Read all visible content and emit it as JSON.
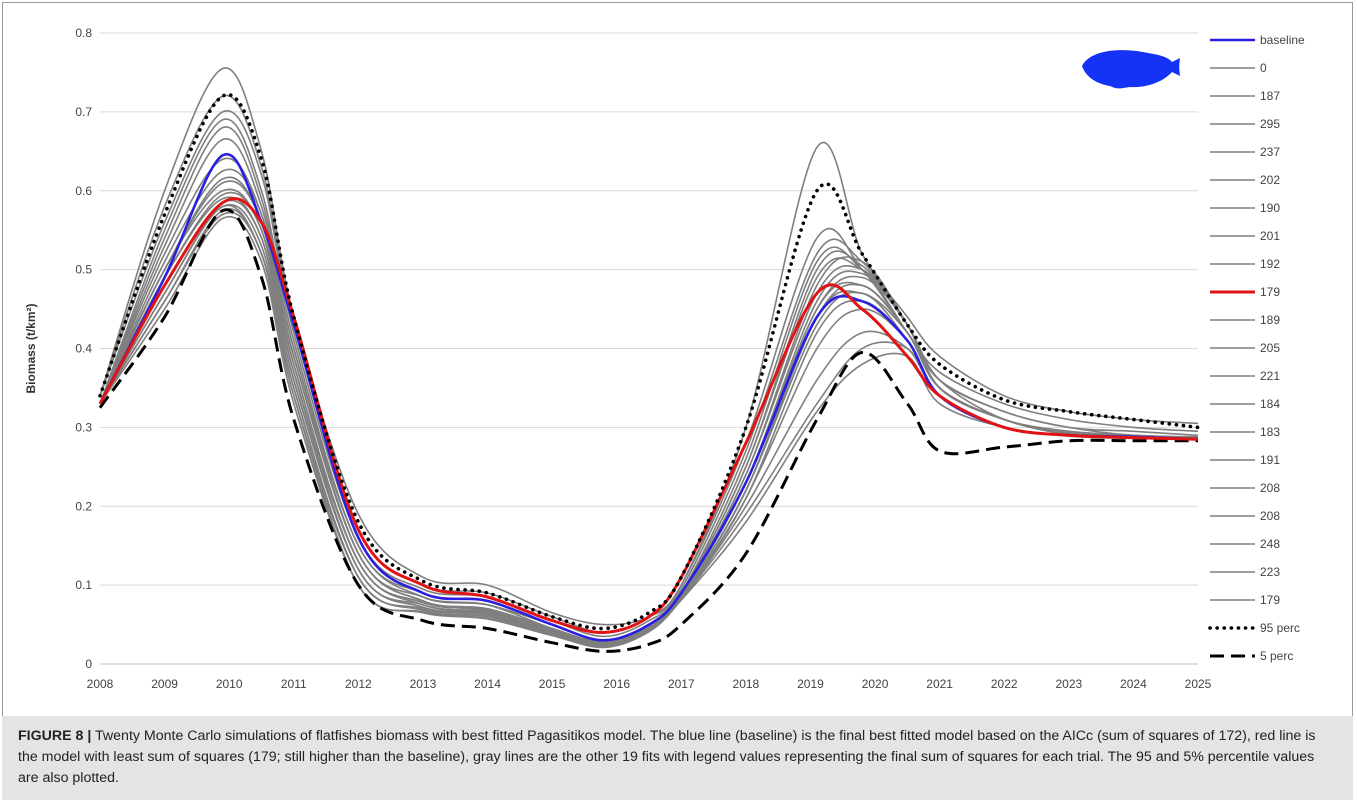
{
  "caption": {
    "label": "FIGURE 8 |",
    "text": " Twenty Monte Carlo simulations of flatfishes biomass with best fitted Pagasitikos model. The blue line (baseline) is the final best fitted model based on the AICc (sum of squares of 172), red line is the model with least sum of squares (179; still higher than the baseline), gray lines are the other 19 fits with legend values representing the final sum of squares for each trial. The 95 and 5% percentile values are also plotted."
  },
  "colors": {
    "baseline": "#2a1fe0",
    "best_fit": "#e01414",
    "gray": "#7f7f7f",
    "percentile": "#000000",
    "fish_icon": "#1433f5"
  },
  "icon": "flatfish-icon",
  "chart_data": {
    "type": "line",
    "xlabel": "",
    "ylabel": "Biomass (t/km²)",
    "xlim": [
      2008,
      2025
    ],
    "ylim": [
      0,
      0.8
    ],
    "x_ticks": [
      "2008",
      "2009",
      "2010",
      "2011",
      "2012",
      "2013",
      "2014",
      "2015",
      "2016",
      "2017",
      "2018",
      "2019",
      "2020",
      "2021",
      "2022",
      "2023",
      "2024",
      "2025"
    ],
    "y_ticks": [
      "0",
      "0.1",
      "0.2",
      "0.3",
      "0.4",
      "0.5",
      "0.6",
      "0.7",
      "0.8"
    ],
    "grid": "horizontal",
    "legend_position": "right",
    "x": [
      2008,
      2009,
      2009.9,
      2010.5,
      2011,
      2012,
      2013,
      2014,
      2015,
      2015.8,
      2016.5,
      2017,
      2018,
      2019.1,
      2019.8,
      2020.5,
      2021,
      2022,
      2023,
      2024,
      2025
    ],
    "series": [
      {
        "name": "baseline",
        "style": "blue",
        "values": [
          0.33,
          0.49,
          0.645,
          0.56,
          0.43,
          0.16,
          0.09,
          0.08,
          0.05,
          0.03,
          0.05,
          0.09,
          0.23,
          0.44,
          0.46,
          0.41,
          0.34,
          0.3,
          0.29,
          0.288,
          0.285
        ]
      },
      {
        "name": "0",
        "style": "gray",
        "values": [
          0.34,
          0.6,
          0.755,
          0.65,
          0.44,
          0.19,
          0.11,
          0.1,
          0.065,
          0.05,
          0.06,
          0.1,
          0.3,
          0.655,
          0.52,
          0.44,
          0.39,
          0.34,
          0.32,
          0.31,
          0.305
        ]
      },
      {
        "name": "187",
        "style": "gray",
        "values": [
          0.34,
          0.58,
          0.72,
          0.63,
          0.43,
          0.17,
          0.1,
          0.09,
          0.06,
          0.04,
          0.06,
          0.1,
          0.28,
          0.54,
          0.5,
          0.42,
          0.37,
          0.33,
          0.31,
          0.3,
          0.295
        ]
      },
      {
        "name": "295",
        "style": "gray",
        "values": [
          0.34,
          0.56,
          0.7,
          0.62,
          0.42,
          0.16,
          0.095,
          0.085,
          0.055,
          0.035,
          0.055,
          0.095,
          0.27,
          0.52,
          0.51,
          0.43,
          0.36,
          0.32,
          0.3,
          0.295,
          0.29
        ]
      },
      {
        "name": "237",
        "style": "gray",
        "values": [
          0.33,
          0.55,
          0.69,
          0.6,
          0.41,
          0.15,
          0.09,
          0.08,
          0.05,
          0.03,
          0.05,
          0.09,
          0.26,
          0.51,
          0.5,
          0.42,
          0.36,
          0.32,
          0.3,
          0.29,
          0.288
        ]
      },
      {
        "name": "202",
        "style": "gray",
        "values": [
          0.33,
          0.54,
          0.68,
          0.59,
          0.4,
          0.15,
          0.085,
          0.075,
          0.05,
          0.03,
          0.05,
          0.09,
          0.25,
          0.5,
          0.505,
          0.43,
          0.36,
          0.31,
          0.295,
          0.29,
          0.287
        ]
      },
      {
        "name": "190",
        "style": "gray",
        "values": [
          0.33,
          0.53,
          0.665,
          0.58,
          0.4,
          0.14,
          0.085,
          0.075,
          0.045,
          0.028,
          0.048,
          0.088,
          0.25,
          0.49,
          0.5,
          0.43,
          0.35,
          0.31,
          0.295,
          0.29,
          0.287
        ]
      },
      {
        "name": "201",
        "style": "gray",
        "values": [
          0.33,
          0.52,
          0.64,
          0.57,
          0.39,
          0.14,
          0.08,
          0.07,
          0.045,
          0.028,
          0.048,
          0.088,
          0.24,
          0.48,
          0.51,
          0.43,
          0.35,
          0.31,
          0.293,
          0.289,
          0.286
        ]
      },
      {
        "name": "192",
        "style": "gray",
        "values": [
          0.33,
          0.51,
          0.625,
          0.57,
          0.39,
          0.14,
          0.08,
          0.07,
          0.045,
          0.027,
          0.047,
          0.087,
          0.24,
          0.47,
          0.5,
          0.43,
          0.35,
          0.31,
          0.293,
          0.289,
          0.286
        ]
      },
      {
        "name": "179",
        "style": "red",
        "values": [
          0.33,
          0.48,
          0.585,
          0.56,
          0.44,
          0.17,
          0.1,
          0.085,
          0.055,
          0.04,
          0.06,
          0.11,
          0.28,
          0.47,
          0.45,
          0.39,
          0.34,
          0.3,
          0.29,
          0.287,
          0.285
        ]
      },
      {
        "name": "189",
        "style": "gray",
        "values": [
          0.33,
          0.5,
          0.615,
          0.56,
          0.38,
          0.13,
          0.078,
          0.068,
          0.043,
          0.026,
          0.046,
          0.086,
          0.23,
          0.46,
          0.495,
          0.43,
          0.35,
          0.31,
          0.292,
          0.288,
          0.286
        ]
      },
      {
        "name": "205",
        "style": "gray",
        "values": [
          0.33,
          0.5,
          0.61,
          0.56,
          0.38,
          0.13,
          0.078,
          0.068,
          0.043,
          0.026,
          0.046,
          0.086,
          0.23,
          0.45,
          0.49,
          0.43,
          0.35,
          0.31,
          0.292,
          0.288,
          0.286
        ]
      },
      {
        "name": "221",
        "style": "gray",
        "values": [
          0.33,
          0.5,
          0.6,
          0.55,
          0.37,
          0.13,
          0.075,
          0.066,
          0.042,
          0.025,
          0.045,
          0.085,
          0.23,
          0.45,
          0.48,
          0.42,
          0.35,
          0.31,
          0.292,
          0.288,
          0.286
        ]
      },
      {
        "name": "184",
        "style": "gray",
        "values": [
          0.33,
          0.49,
          0.595,
          0.55,
          0.37,
          0.12,
          0.075,
          0.065,
          0.041,
          0.025,
          0.045,
          0.085,
          0.22,
          0.44,
          0.48,
          0.42,
          0.35,
          0.31,
          0.291,
          0.287,
          0.285
        ]
      },
      {
        "name": "183",
        "style": "gray",
        "values": [
          0.33,
          0.49,
          0.59,
          0.54,
          0.36,
          0.12,
          0.072,
          0.064,
          0.04,
          0.024,
          0.044,
          0.084,
          0.22,
          0.44,
          0.47,
          0.42,
          0.35,
          0.31,
          0.291,
          0.287,
          0.285
        ]
      },
      {
        "name": "191",
        "style": "gray",
        "values": [
          0.33,
          0.48,
          0.585,
          0.54,
          0.36,
          0.12,
          0.072,
          0.064,
          0.04,
          0.024,
          0.044,
          0.084,
          0.22,
          0.43,
          0.47,
          0.41,
          0.34,
          0.3,
          0.29,
          0.287,
          0.285
        ]
      },
      {
        "name": "208",
        "style": "gray",
        "values": [
          0.33,
          0.47,
          0.58,
          0.53,
          0.35,
          0.11,
          0.07,
          0.062,
          0.039,
          0.023,
          0.043,
          0.083,
          0.21,
          0.42,
          0.46,
          0.41,
          0.34,
          0.3,
          0.29,
          0.287,
          0.285
        ]
      },
      {
        "name": "208",
        "style": "gray",
        "values": [
          0.33,
          0.47,
          0.58,
          0.52,
          0.35,
          0.11,
          0.07,
          0.062,
          0.039,
          0.023,
          0.043,
          0.083,
          0.21,
          0.4,
          0.45,
          0.41,
          0.34,
          0.3,
          0.29,
          0.287,
          0.285
        ]
      },
      {
        "name": "248",
        "style": "gray",
        "values": [
          0.33,
          0.46,
          0.575,
          0.52,
          0.34,
          0.11,
          0.068,
          0.06,
          0.038,
          0.022,
          0.042,
          0.082,
          0.2,
          0.36,
          0.42,
          0.4,
          0.34,
          0.3,
          0.29,
          0.287,
          0.285
        ]
      },
      {
        "name": "223",
        "style": "gray",
        "values": [
          0.33,
          0.46,
          0.57,
          0.52,
          0.34,
          0.1,
          0.066,
          0.058,
          0.037,
          0.022,
          0.042,
          0.082,
          0.19,
          0.33,
          0.4,
          0.4,
          0.34,
          0.3,
          0.29,
          0.287,
          0.285
        ]
      },
      {
        "name": "179",
        "style": "gray",
        "values": [
          0.33,
          0.45,
          0.565,
          0.51,
          0.33,
          0.1,
          0.065,
          0.057,
          0.036,
          0.021,
          0.041,
          0.081,
          0.18,
          0.32,
          0.38,
          0.39,
          0.33,
          0.3,
          0.289,
          0.286,
          0.285
        ]
      },
      {
        "name": "95 perc",
        "style": "dotted",
        "values": [
          0.34,
          0.57,
          0.72,
          0.64,
          0.44,
          0.18,
          0.105,
          0.09,
          0.06,
          0.045,
          0.065,
          0.11,
          0.3,
          0.6,
          0.52,
          0.43,
          0.38,
          0.335,
          0.32,
          0.31,
          0.3
        ]
      },
      {
        "name": "5 perc",
        "style": "dashed",
        "values": [
          0.325,
          0.44,
          0.575,
          0.49,
          0.31,
          0.1,
          0.055,
          0.045,
          0.027,
          0.016,
          0.025,
          0.05,
          0.14,
          0.31,
          0.395,
          0.33,
          0.27,
          0.275,
          0.283,
          0.283,
          0.283
        ]
      }
    ]
  }
}
